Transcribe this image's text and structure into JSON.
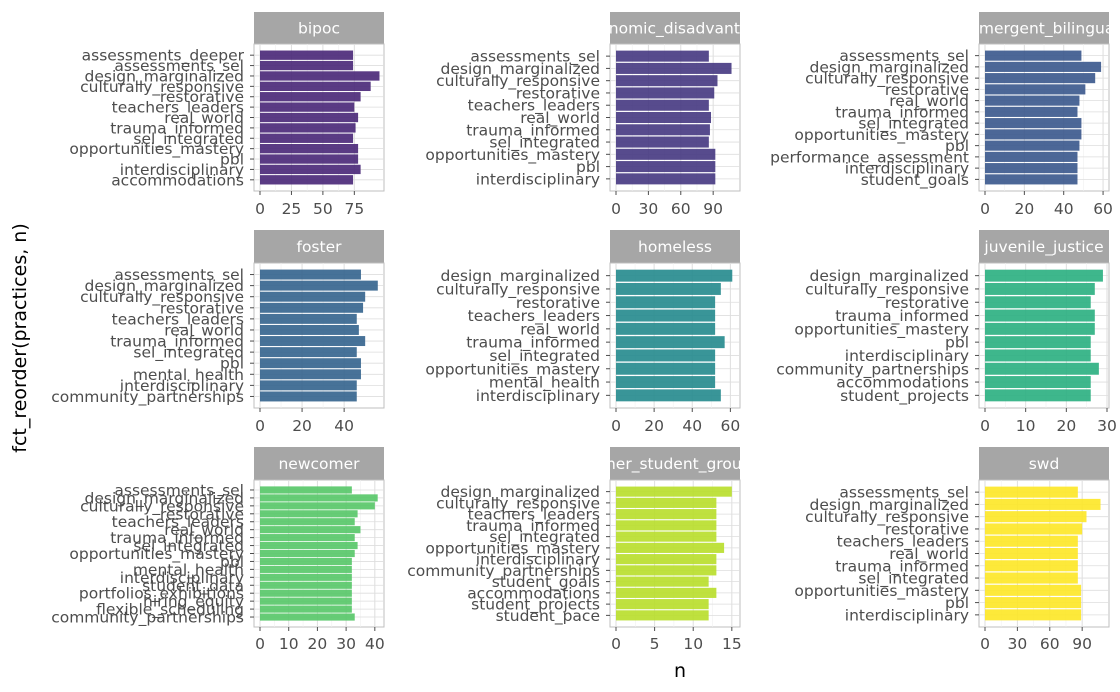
{
  "chart_data": {
    "type": "bar",
    "orientation": "horizontal",
    "layout": "facet_wrap 3x3, free scales",
    "xlabel": "n",
    "ylabel": "fct_reorder(practices, n)",
    "grid": true,
    "colors": [
      "#482677",
      "#453781",
      "#39568C",
      "#33638D",
      "#238A8D",
      "#29AF7F",
      "#55C667",
      "#B8DE29",
      "#FDE725"
    ],
    "facets": [
      {
        "name": "bipoc",
        "categories": [
          "assessments_deeper",
          "assessments_sel",
          "design_marginalized",
          "culturally_responsive",
          "restorative",
          "teachers_leaders",
          "real_world",
          "trauma_informed",
          "sel_integrated",
          "opportunities_mastery",
          "pbl",
          "interdisciplinary",
          "accommodations"
        ],
        "values": [
          74,
          74,
          95,
          88,
          80,
          75,
          78,
          76,
          74,
          78,
          78,
          80,
          74
        ],
        "xlim": [
          0,
          97
        ],
        "xticks": [
          0,
          25,
          50,
          75
        ]
      },
      {
        "name": "economic_disadvantage",
        "categories": [
          "assessments_sel",
          "design_marginalized",
          "culturally_responsive",
          "restorative",
          "teachers_leaders",
          "real_world",
          "trauma_informed",
          "sel_integrated",
          "opportunities_mastery",
          "pbl",
          "interdisciplinary"
        ],
        "values": [
          86,
          107,
          94,
          91,
          86,
          88,
          87,
          86,
          92,
          92,
          92
        ],
        "xlim": [
          0,
          113
        ],
        "xticks": [
          0,
          30,
          60,
          90
        ]
      },
      {
        "name": "emergent_bilingual",
        "categories": [
          "assessments_sel",
          "design_marginalized",
          "culturally_responsive",
          "restorative",
          "real_world",
          "trauma_informed",
          "sel_integrated",
          "opportunities_mastery",
          "pbl",
          "performance_assessment",
          "interdisciplinary",
          "student_goals"
        ],
        "values": [
          49,
          59,
          56,
          51,
          48,
          47,
          49,
          49,
          48,
          47,
          47,
          47
        ],
        "xlim": [
          0,
          62
        ],
        "xticks": [
          0,
          20,
          40,
          60
        ]
      },
      {
        "name": "foster",
        "categories": [
          "assessments_sel",
          "design_marginalized",
          "culturally_responsive",
          "restorative",
          "teachers_leaders",
          "real_world",
          "trauma_informed",
          "sel_integrated",
          "pbl",
          "mental_health",
          "interdisciplinary",
          "community_partnerships"
        ],
        "values": [
          48,
          56,
          50,
          49,
          46,
          47,
          50,
          46,
          48,
          48,
          46,
          46
        ],
        "xlim": [
          0,
          58
        ],
        "xticks": [
          0,
          20,
          40
        ]
      },
      {
        "name": "homeless",
        "categories": [
          "design_marginalized",
          "culturally_responsive",
          "restorative",
          "teachers_leaders",
          "real_world",
          "trauma_informed",
          "sel_integrated",
          "opportunities_mastery",
          "mental_health",
          "interdisciplinary"
        ],
        "values": [
          61,
          55,
          52,
          52,
          52,
          57,
          52,
          52,
          52,
          55
        ],
        "xlim": [
          0,
          64
        ],
        "xticks": [
          0,
          20,
          40,
          60
        ]
      },
      {
        "name": "juvenile_justice",
        "categories": [
          "design_marginalized",
          "culturally_responsive",
          "restorative",
          "trauma_informed",
          "opportunities_mastery",
          "pbl",
          "interdisciplinary",
          "community_partnerships",
          "accommodations",
          "student_projects"
        ],
        "values": [
          29,
          27,
          26,
          27,
          27,
          26,
          26,
          28,
          26,
          26
        ],
        "xlim": [
          0,
          30
        ],
        "xticks": [
          0,
          10,
          20,
          30
        ]
      },
      {
        "name": "newcomer",
        "categories": [
          "assessments_sel",
          "design_marginalized",
          "culturally_responsive",
          "restorative",
          "teachers_leaders",
          "real_world",
          "trauma_informed",
          "sel_integrated",
          "opportunities_mastery",
          "pbl",
          "mental_health",
          "interdisciplinary",
          "student_data",
          "portfolios_exhibitions",
          "hiring_equity",
          "flexible_scheduling",
          "community_partnerships"
        ],
        "values": [
          32,
          41,
          40,
          34,
          33,
          35,
          33,
          34,
          33,
          32,
          32,
          32,
          32,
          32,
          32,
          32,
          33
        ],
        "xlim": [
          0,
          42.5
        ],
        "xticks": [
          0,
          10,
          20,
          30,
          40
        ]
      },
      {
        "name": "other_student_groups",
        "categories": [
          "design_marginalized",
          "culturally_responsive",
          "teachers_leaders",
          "trauma_informed",
          "sel_integrated",
          "opportunities_mastery",
          "interdisciplinary",
          "community_partnerships",
          "student_goals",
          "accommodations",
          "student_projects",
          "student_pace"
        ],
        "values": [
          15,
          13,
          13,
          13,
          13,
          14,
          13,
          13,
          12,
          13,
          12,
          12
        ],
        "xlim": [
          0,
          15.8
        ],
        "xticks": [
          0,
          5,
          10,
          15
        ]
      },
      {
        "name": "swd",
        "categories": [
          "assessments_sel",
          "design_marginalized",
          "culturally_responsive",
          "restorative",
          "teachers_leaders",
          "real_world",
          "trauma_informed",
          "sel_integrated",
          "opportunities_mastery",
          "pbl",
          "interdisciplinary"
        ],
        "values": [
          86,
          107,
          94,
          90,
          86,
          86,
          86,
          86,
          89,
          89,
          89
        ],
        "xlim": [
          0,
          113
        ],
        "xticks": [
          0,
          30,
          60,
          90
        ]
      }
    ]
  }
}
